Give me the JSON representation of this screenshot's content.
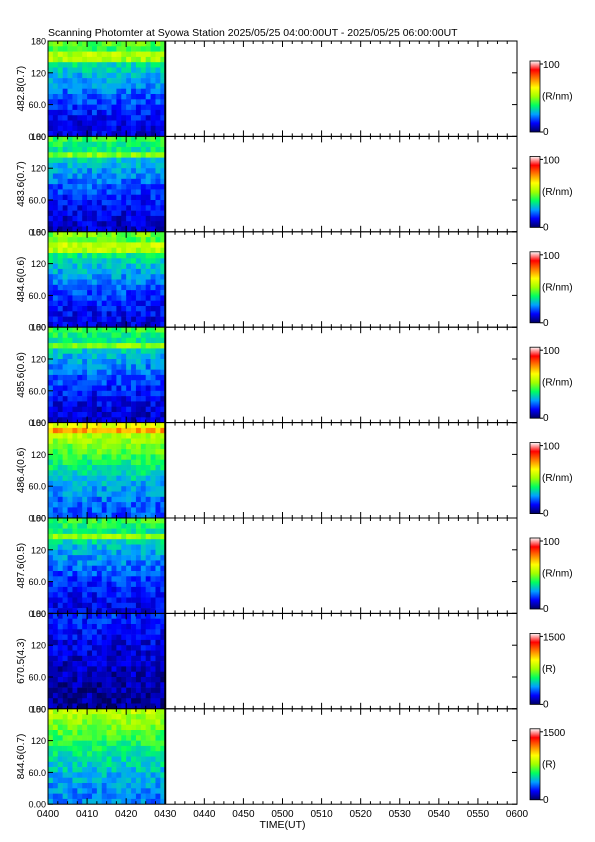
{
  "title": "Scanning Photomter at Syowa Station  2025/05/25 04:00:00UT - 2025/05/25 06:00:00UT",
  "chart_data": {
    "type": "heatmap",
    "xlabel": "TIME(UT)",
    "x_ticks": [
      "0400",
      "0410",
      "0420",
      "0430",
      "0440",
      "0450",
      "0500",
      "0510",
      "0520",
      "0530",
      "0540",
      "0550",
      "0600"
    ],
    "x_range": [
      "04:00",
      "06:00"
    ],
    "data_end_time": "04:30",
    "y_ticks": [
      "0.00",
      "60.0",
      "120",
      "180"
    ],
    "y_range": [
      0,
      180
    ],
    "panels": [
      {
        "ylabel": "482.8(0.7)",
        "cbar_max": "100",
        "cbar_min": "0",
        "cbar_unit": "(R/nm)",
        "band_level": 0.1,
        "top_level": 0.45,
        "arc_pos": 0.83
      },
      {
        "ylabel": "483.6(0.7)",
        "cbar_max": "100",
        "cbar_min": "0",
        "cbar_unit": "(R/nm)",
        "band_level": 0.08,
        "top_level": 0.42,
        "arc_pos": 0.8
      },
      {
        "ylabel": "484.6(0.6)",
        "cbar_max": "100",
        "cbar_min": "0",
        "cbar_unit": "(R/nm)",
        "band_level": 0.1,
        "top_level": 0.48,
        "arc_pos": 0.84
      },
      {
        "ylabel": "485.6(0.6)",
        "cbar_max": "100",
        "cbar_min": "0",
        "cbar_unit": "(R/nm)",
        "band_level": 0.08,
        "top_level": 0.42,
        "arc_pos": 0.82
      },
      {
        "ylabel": "486.4(0.6)",
        "cbar_max": "100",
        "cbar_min": "0",
        "cbar_unit": "(R/nm)",
        "band_level": 0.18,
        "top_level": 0.62,
        "arc_pos": 0.93
      },
      {
        "ylabel": "487.6(0.5)",
        "cbar_max": "100",
        "cbar_min": "0",
        "cbar_unit": "(R/nm)",
        "band_level": 0.1,
        "top_level": 0.42,
        "arc_pos": 0.82
      },
      {
        "ylabel": "670.5(4.3)",
        "cbar_max": "1500",
        "cbar_min": "0",
        "cbar_unit": "(R)",
        "band_level": 0.04,
        "top_level": 0.16,
        "arc_pos": 0.0
      },
      {
        "ylabel": "844.6(0.7)",
        "cbar_max": "1500",
        "cbar_min": "0",
        "cbar_unit": "(R)",
        "band_level": 0.22,
        "top_level": 0.55,
        "arc_pos": 0.0
      }
    ],
    "colorbar_colors": [
      "#000060",
      "#0000ff",
      "#00a0ff",
      "#00ff60",
      "#a0ff00",
      "#ffff00",
      "#ff8000",
      "#ff0000",
      "#ffffff"
    ]
  }
}
